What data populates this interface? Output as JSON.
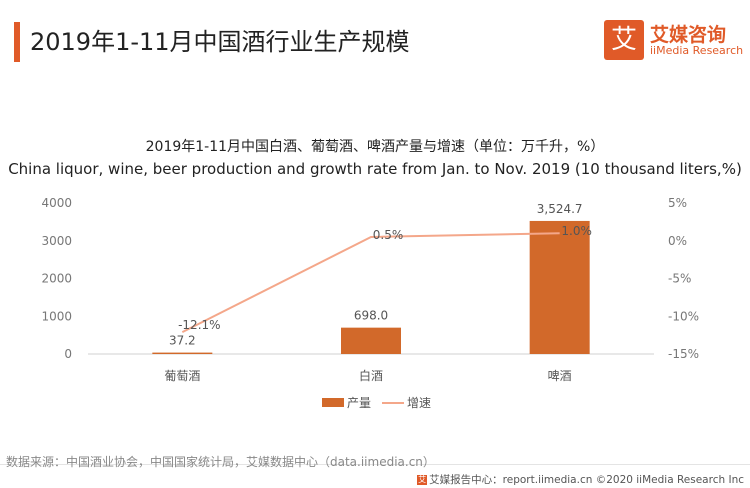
{
  "page": {
    "title": "2019年1-11月中国酒行业生产规模"
  },
  "brand": {
    "logo_char": "艾",
    "name": "艾媒咨询",
    "sub": "iiMedia Research"
  },
  "chart_data": {
    "type": "bar",
    "title_cn": "2019年1-11月中国白酒、葡萄酒、啤酒产量与增速（单位：万千升，%）",
    "title_en": "China liquor, wine, beer production and growth rate from Jan. to Nov. 2019 (10 thousand liters,%)",
    "categories": [
      "葡萄酒",
      "白酒",
      "啤酒"
    ],
    "series": [
      {
        "name": "产量",
        "kind": "bar",
        "axis": "left",
        "color": "#d2692a",
        "values": [
          37.2,
          698.0,
          3524.7
        ],
        "labels": [
          "37.2",
          "698.0",
          "3,524.7"
        ]
      },
      {
        "name": "增速",
        "kind": "line",
        "axis": "right",
        "color": "#f4a78a",
        "values": [
          -12.1,
          0.5,
          1.0
        ],
        "labels": [
          "-12.1%",
          "0.5%",
          "1.0%"
        ]
      }
    ],
    "y_left": {
      "ylim": [
        0,
        4000
      ],
      "ticks": [
        "0",
        "1000",
        "2000",
        "3000",
        "4000"
      ]
    },
    "y_right": {
      "ylim": [
        -15,
        5
      ],
      "ticks": [
        "-15%",
        "-10%",
        "-5%",
        "0%",
        "5%"
      ]
    },
    "grid": false,
    "legend": "bottom-center"
  },
  "source": "数据来源：中国酒业协会，中国国家统计局，艾媒数据中心（data.iimedia.cn）",
  "footer": {
    "icon": "艾",
    "text": "艾媒报告中心：report.iimedia.cn  ©2020  iiMedia Research  Inc"
  }
}
